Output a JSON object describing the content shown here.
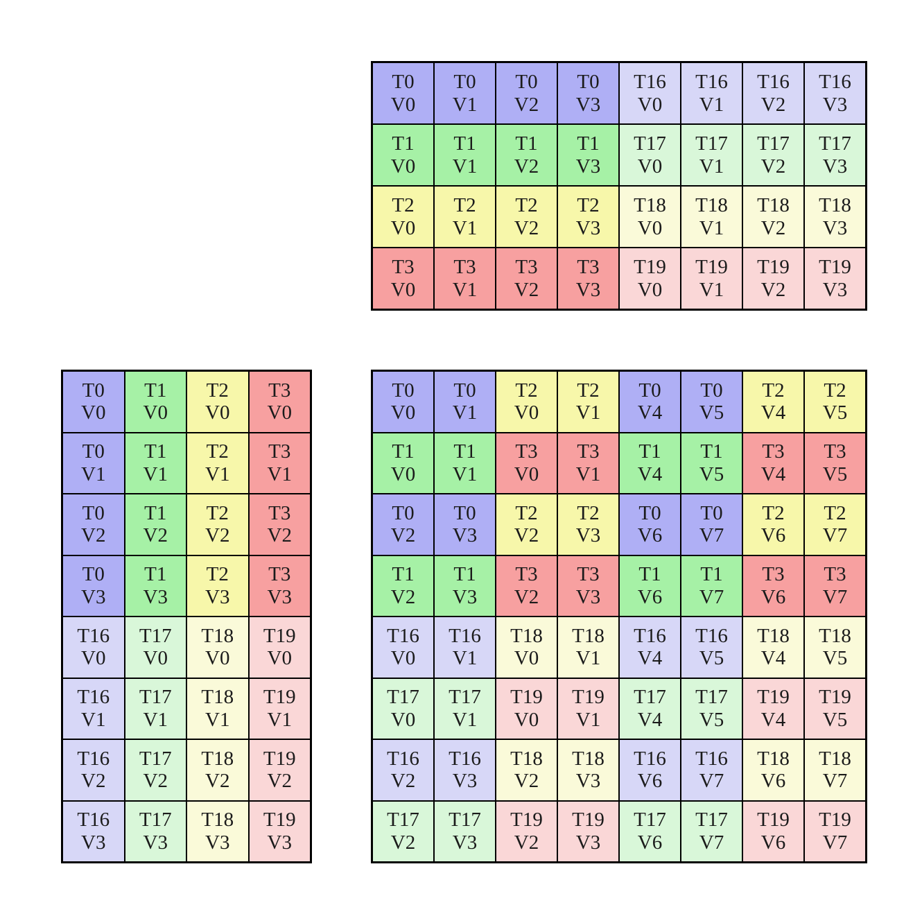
{
  "page": {
    "background": "#ffffff",
    "grid_line_color": "#000000",
    "text_color": "#1b1b1b"
  },
  "thread_colors": {
    "T0": "#afaff5",
    "T1": "#a6f1a6",
    "T2": "#f7f7aa",
    "T3": "#f7a0a0",
    "T16": "#d7d7f7",
    "T17": "#d9f7d9",
    "T18": "#fafad9",
    "T19": "#fad7d7"
  },
  "grids": {
    "top": {
      "rows": [
        [
          "T0 V0",
          "T0 V1",
          "T0 V2",
          "T0 V3",
          "T16 V0",
          "T16 V1",
          "T16 V2",
          "T16 V3"
        ],
        [
          "T1 V0",
          "T1 V1",
          "T1 V2",
          "T1 V3",
          "T17 V0",
          "T17 V1",
          "T17 V2",
          "T17 V3"
        ],
        [
          "T2 V0",
          "T2 V1",
          "T2 V2",
          "T2 V3",
          "T18 V0",
          "T18 V1",
          "T18 V2",
          "T18 V3"
        ],
        [
          "T3 V0",
          "T3 V1",
          "T3 V2",
          "T3 V3",
          "T19 V0",
          "T19 V1",
          "T19 V2",
          "T19 V3"
        ]
      ]
    },
    "left": {
      "rows": [
        [
          "T0 V0",
          "T1 V0",
          "T2 V0",
          "T3 V0"
        ],
        [
          "T0 V1",
          "T1 V1",
          "T2 V1",
          "T3 V1"
        ],
        [
          "T0 V2",
          "T1 V2",
          "T2 V2",
          "T3 V2"
        ],
        [
          "T0 V3",
          "T1 V3",
          "T2 V3",
          "T3 V3"
        ],
        [
          "T16 V0",
          "T17 V0",
          "T18 V0",
          "T19 V0"
        ],
        [
          "T16 V1",
          "T17 V1",
          "T18 V1",
          "T19 V1"
        ],
        [
          "T16 V2",
          "T17 V2",
          "T18 V2",
          "T19 V2"
        ],
        [
          "T16 V3",
          "T17 V3",
          "T18 V3",
          "T19 V3"
        ]
      ]
    },
    "result": {
      "rows": [
        [
          "T0 V0",
          "T0 V1",
          "T2 V0",
          "T2 V1",
          "T0 V4",
          "T0 V5",
          "T2 V4",
          "T2 V5"
        ],
        [
          "T1 V0",
          "T1 V1",
          "T3 V0",
          "T3 V1",
          "T1 V4",
          "T1 V5",
          "T3 V4",
          "T3 V5"
        ],
        [
          "T0 V2",
          "T0 V3",
          "T2 V2",
          "T2 V3",
          "T0 V6",
          "T0 V7",
          "T2 V6",
          "T2 V7"
        ],
        [
          "T1 V2",
          "T1 V3",
          "T3 V2",
          "T3 V3",
          "T1 V6",
          "T1 V7",
          "T3 V6",
          "T3 V7"
        ],
        [
          "T16 V0",
          "T16 V1",
          "T18 V0",
          "T18 V1",
          "T16 V4",
          "T16 V5",
          "T18 V4",
          "T18 V5"
        ],
        [
          "T17 V0",
          "T17 V1",
          "T19 V0",
          "T19 V1",
          "T17 V4",
          "T17 V5",
          "T19 V4",
          "T19 V5"
        ],
        [
          "T16 V2",
          "T16 V3",
          "T18 V2",
          "T18 V3",
          "T16 V6",
          "T16 V7",
          "T18 V6",
          "T18 V7"
        ],
        [
          "T17 V2",
          "T17 V3",
          "T19 V2",
          "T19 V3",
          "T17 V6",
          "T17 V7",
          "T19 V6",
          "T19 V7"
        ]
      ]
    }
  }
}
